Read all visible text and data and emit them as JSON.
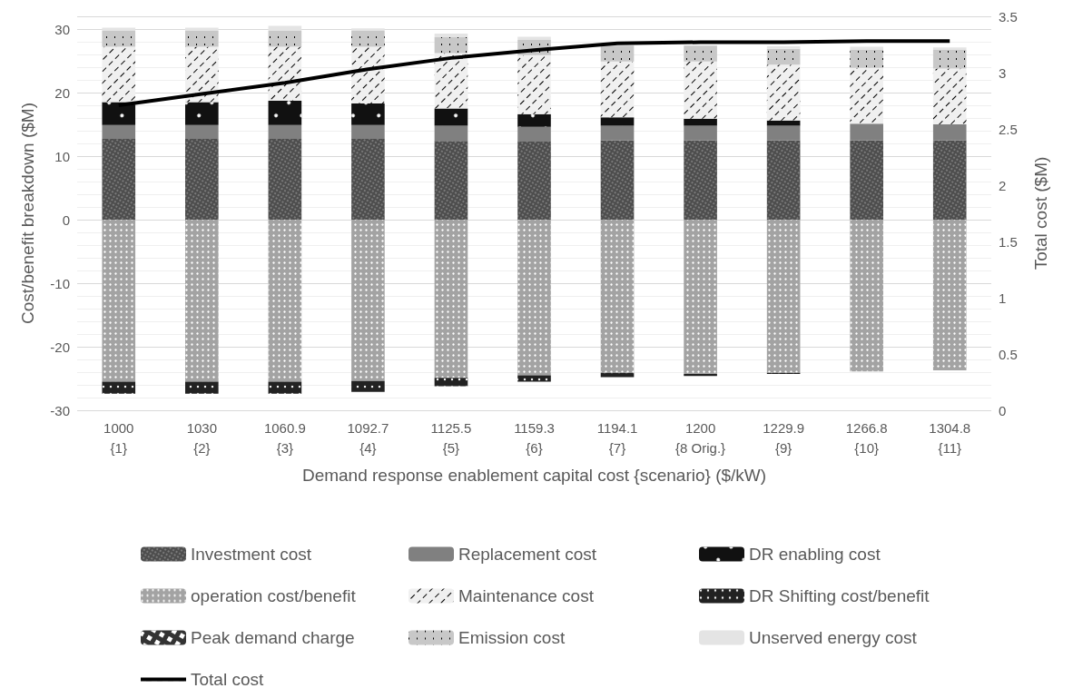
{
  "chart_data": {
    "type": "bar",
    "stacked": true,
    "xlabel": "Demand response enablement capital cost {scenario} ($/kW)",
    "ylabel": "Cost/benefit breakdown ($M)",
    "y2label": "Total cost ($M)",
    "categories": [
      "1000\n{1}",
      "1030\n{2}",
      "1060.9\n{3}",
      "1092.7\n{4}",
      "1125.5\n{5}",
      "1159.3\n{6}",
      "1194.1\n{7}",
      "1200\n{8 Orig.}",
      "1229.9\n{9}",
      "1266.8\n{10}",
      "1304.8\n{11}"
    ],
    "ylim": [
      -30,
      32
    ],
    "yticks": [
      -30,
      -20,
      -10,
      0,
      10,
      20,
      30,
      {
        "value": 32,
        "label": null
      }
    ],
    "y2lim": [
      0,
      3.5
    ],
    "y2ticks": [
      0,
      0.5,
      1,
      1.5,
      2,
      2.5,
      3,
      3.5
    ],
    "grid": "y",
    "legend": "bottom",
    "series": [
      {
        "name": "Investment cost",
        "color": "#4d4d4d",
        "values": [
          12.7,
          12.7,
          12.7,
          12.7,
          12.4,
          12.3,
          12.5,
          12.5,
          12.5,
          12.5,
          12.5
        ]
      },
      {
        "name": "Replacement cost",
        "color": "#808080",
        "values": [
          2.2,
          2.2,
          2.2,
          2.2,
          2.4,
          2.3,
          2.3,
          2.3,
          2.3,
          2.6,
          2.5
        ]
      },
      {
        "name": "DR enabling cost",
        "color": "#111111",
        "values": [
          3.6,
          3.6,
          3.8,
          3.4,
          2.7,
          2.0,
          1.3,
          1.1,
          0.8,
          0,
          0
        ]
      },
      {
        "name": "operation cost/benefit",
        "color": "#a3a3a3",
        "values": [
          -25.5,
          -25.5,
          -25.5,
          -25.4,
          -24.9,
          -24.5,
          -24.1,
          -24.3,
          -24.1,
          -23.9,
          -23.7
        ]
      },
      {
        "name": "Maintenance cost",
        "color": "#f0f0f0",
        "values": [
          8.7,
          8.7,
          8.5,
          8.9,
          8.7,
          9.3,
          8.8,
          9.0,
          8.8,
          8.8,
          8.8
        ]
      },
      {
        "name": "DR Shifting cost/benefit",
        "color": "#222222",
        "values": [
          -1.9,
          -1.9,
          -1.9,
          -1.7,
          -1.3,
          -1.0,
          -0.7,
          -0.3,
          -0.2,
          0,
          0
        ]
      },
      {
        "name": "Peak demand charge",
        "color": "#333333",
        "values": [
          0,
          0,
          0,
          0,
          0,
          0,
          0,
          0,
          0,
          0,
          0
        ]
      },
      {
        "name": "Emission cost",
        "color": "#c8c8c8",
        "values": [
          2.5,
          2.5,
          2.5,
          2.5,
          2.5,
          2.4,
          2.5,
          2.5,
          2.5,
          2.8,
          2.9
        ]
      },
      {
        "name": "Unserved energy cost",
        "color": "#e4e4e4",
        "values": [
          0.5,
          0.5,
          0.8,
          0.4,
          0.6,
          0.5,
          null,
          null,
          0.4,
          0.5,
          0.4
        ]
      },
      {
        "name": "Total cost",
        "type": "line",
        "axis": "y2",
        "color": "#000000",
        "values": [
          2.71,
          2.81,
          2.91,
          3.03,
          3.13,
          3.2,
          3.26,
          3.27,
          3.27,
          3.28,
          3.28
        ]
      }
    ]
  }
}
